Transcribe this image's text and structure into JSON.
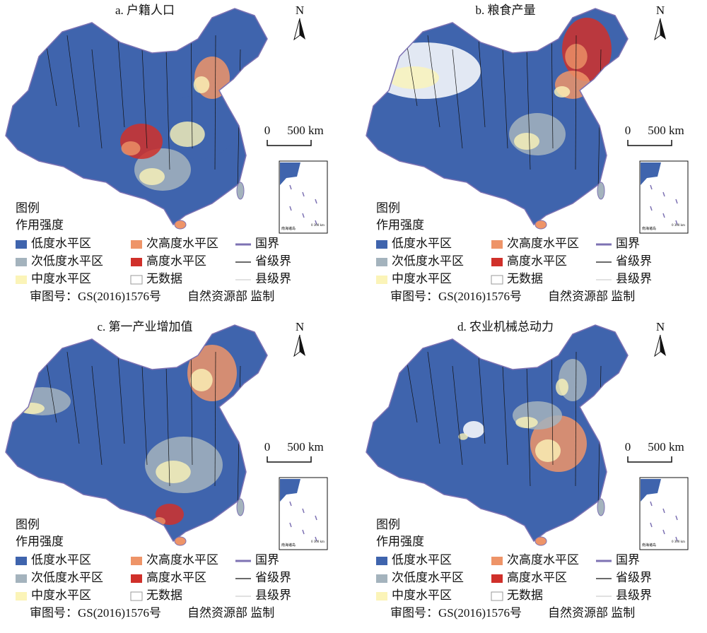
{
  "panels": [
    {
      "title": "a. 户籍人口",
      "north": "N",
      "scale": {
        "zero": "0",
        "label": "500 km"
      },
      "inset_label": "南海诸岛",
      "inset_scale": "0 300 km",
      "legend": {
        "heading": "图例",
        "subheading": "作用强度",
        "items": [
          {
            "label": "低度水平区",
            "color": "#3f64ad"
          },
          {
            "label": "次高度水平区",
            "color": "#ee9468"
          },
          {
            "label": "国界",
            "color": "#7d72b3"
          },
          {
            "label": "次低度水平区",
            "color": "#a4b3bd"
          },
          {
            "label": "高度水平区",
            "color": "#d0302a"
          },
          {
            "label": "省级界",
            "color": "#111111"
          },
          {
            "label": "中度水平区",
            "color": "#fbf4b8"
          },
          {
            "label": "无数据",
            "color": "#ffffff"
          },
          {
            "label": "县级界",
            "color": "#cfcfcf"
          }
        ]
      },
      "approval": "审图号：GS(2016)1576号",
      "supervisor": "自然资源部 监制"
    },
    {
      "title": "b. 粮食产量",
      "north": "N",
      "scale": {
        "zero": "0",
        "label": "500 km"
      },
      "inset_label": "南海诸岛",
      "inset_scale": "0 300 km",
      "legend": {
        "heading": "图例",
        "subheading": "作用强度",
        "items": [
          {
            "label": "低度水平区",
            "color": "#3f64ad"
          },
          {
            "label": "次高度水平区",
            "color": "#ee9468"
          },
          {
            "label": "国界",
            "color": "#7d72b3"
          },
          {
            "label": "次低度水平区",
            "color": "#a4b3bd"
          },
          {
            "label": "高度水平区",
            "color": "#d0302a"
          },
          {
            "label": "省级界",
            "color": "#111111"
          },
          {
            "label": "中度水平区",
            "color": "#fbf4b8"
          },
          {
            "label": "无数据",
            "color": "#ffffff"
          },
          {
            "label": "县级界",
            "color": "#cfcfcf"
          }
        ]
      },
      "approval": "审图号：GS(2016)1576号",
      "supervisor": "自然资源部 监制"
    },
    {
      "title": "c. 第一产业增加值",
      "north": "N",
      "scale": {
        "zero": "0",
        "label": "500 km"
      },
      "inset_label": "南海诸岛",
      "inset_scale": "0 300 km",
      "legend": {
        "heading": "图例",
        "subheading": "作用强度",
        "items": [
          {
            "label": "低度水平区",
            "color": "#3f64ad"
          },
          {
            "label": "次高度水平区",
            "color": "#ee9468"
          },
          {
            "label": "国界",
            "color": "#7d72b3"
          },
          {
            "label": "次低度水平区",
            "color": "#a4b3bd"
          },
          {
            "label": "高度水平区",
            "color": "#d0302a"
          },
          {
            "label": "省级界",
            "color": "#111111"
          },
          {
            "label": "中度水平区",
            "color": "#fbf4b8"
          },
          {
            "label": "无数据",
            "color": "#ffffff"
          },
          {
            "label": "县级界",
            "color": "#cfcfcf"
          }
        ]
      },
      "approval": "审图号：GS(2016)1576号",
      "supervisor": "自然资源部 监制"
    },
    {
      "title": "d. 农业机械总动力",
      "north": "N",
      "scale": {
        "zero": "0",
        "label": "500 km"
      },
      "inset_label": "南海诸岛",
      "inset_scale": "0 300 km",
      "legend": {
        "heading": "图例",
        "subheading": "作用强度",
        "items": [
          {
            "label": "低度水平区",
            "color": "#3f64ad"
          },
          {
            "label": "次高度水平区",
            "color": "#ee9468"
          },
          {
            "label": "国界",
            "color": "#7d72b3"
          },
          {
            "label": "次低度水平区",
            "color": "#a4b3bd"
          },
          {
            "label": "高度水平区",
            "color": "#d0302a"
          },
          {
            "label": "省级界",
            "color": "#111111"
          },
          {
            "label": "中度水平区",
            "color": "#fbf4b8"
          },
          {
            "label": "无数据",
            "color": "#ffffff"
          },
          {
            "label": "县级界",
            "color": "#cfcfcf"
          }
        ]
      },
      "approval": "审图号：GS(2016)1576号",
      "supervisor": "自然资源部 监制"
    }
  ]
}
